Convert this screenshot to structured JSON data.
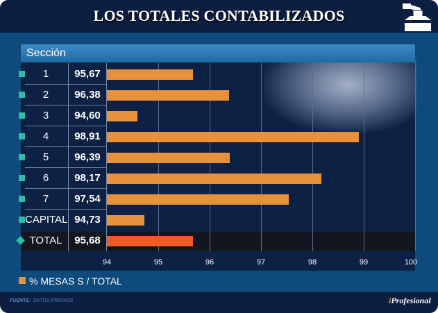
{
  "header": {
    "title": "LOS TOTALES CONTABILIZADOS",
    "icon": "ballot-box-icon"
  },
  "table": {
    "column_header": "Sección"
  },
  "chart_data": {
    "type": "bar",
    "orientation": "horizontal",
    "title": "LOS TOTALES CONTABILIZADOS",
    "categories": [
      "1",
      "2",
      "3",
      "4",
      "5",
      "6",
      "7",
      "CAPITAL",
      "TOTAL"
    ],
    "value_labels": [
      "95,67",
      "96,38",
      "94,60",
      "98,91",
      "96,39",
      "98,17",
      "97,54",
      "94,73",
      "95,68"
    ],
    "series": [
      {
        "name": "% MESAS S / TOTAL",
        "values": [
          95.67,
          96.38,
          94.6,
          98.91,
          96.39,
          98.17,
          97.54,
          94.73,
          95.68
        ]
      }
    ],
    "xlim": [
      94,
      100
    ],
    "x_ticks": [
      "94",
      "95",
      "96",
      "97",
      "98",
      "99",
      "100"
    ],
    "grid": true,
    "legend": "bottom-left",
    "colors": {
      "bar": "#e8913a",
      "total_bar": "#f05a24",
      "marker": "#2bbfa6"
    }
  },
  "legend": {
    "label": "% MESAS S / TOTAL"
  },
  "footer": {
    "source_key": "FUENTE:",
    "source_value": "DATOS PROPIOS",
    "brand_i": "i",
    "brand_rest": "Profesional"
  }
}
